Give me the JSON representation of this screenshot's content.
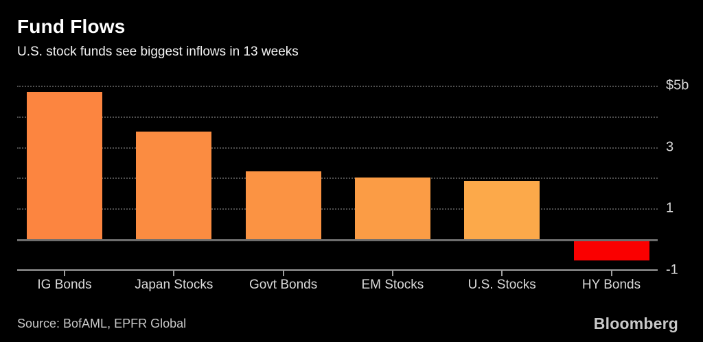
{
  "header": {
    "title": "Fund Flows",
    "subtitle": "U.S. stock funds see biggest inflows in 13 weeks"
  },
  "chart_data": {
    "type": "bar",
    "title": "Fund Flows",
    "subtitle": "U.S. stock funds see biggest inflows in 13 weeks",
    "categories": [
      "IG Bonds",
      "Japan Stocks",
      "Govt Bonds",
      "EM Stocks",
      "U.S. Stocks",
      "HY Bonds"
    ],
    "values": [
      4.8,
      3.5,
      2.2,
      2.0,
      1.9,
      -0.7
    ],
    "unit": "billions USD",
    "bar_colors": [
      "#fc8540",
      "#fb8c41",
      "#fb9343",
      "#fb9c45",
      "#fca94a",
      "#fa0000"
    ],
    "xlabel": "",
    "ylabel": "",
    "ylim": [
      -1,
      5
    ],
    "y_ticks": [
      {
        "value": 5,
        "label": "$5b"
      },
      {
        "value": 3,
        "label": "3"
      },
      {
        "value": 1,
        "label": "1"
      },
      {
        "value": -1,
        "label": "-1"
      }
    ],
    "gridline_values": [
      5,
      4,
      3,
      2,
      1
    ],
    "grid_style": "dotted",
    "zero_line": true,
    "legend_position": "none"
  },
  "footer": {
    "source": "Source: BofAML, EPFR Global",
    "brand": "Bloomberg"
  },
  "colors": {
    "background": "#000000",
    "title_text": "#ffffff",
    "subtitle_text": "#f2f2f2",
    "axis_text": "#d9d9d9",
    "gridline": "#4f4f4f",
    "zero_line": "#6e6e6e",
    "axis_line": "#9e9e9e",
    "footer_text": "#c9c9c9",
    "negative_bar": "#fa0000"
  }
}
